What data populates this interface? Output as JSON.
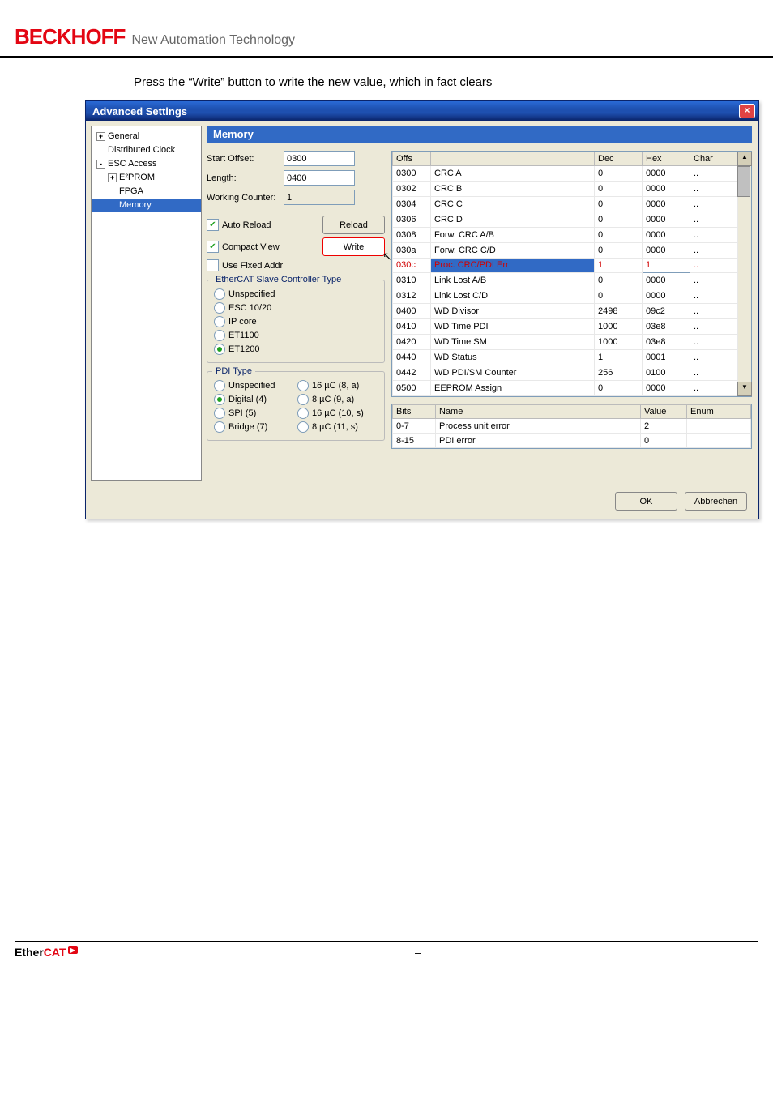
{
  "header": {
    "logo": "BECKHOFF",
    "sub": "New Automation Technology"
  },
  "body_text": "Press the “Write” button to write the new value, which in fact clears",
  "dialog": {
    "title": "Advanced Settings",
    "nav": {
      "general": "General",
      "dist_clock": "Distributed Clock",
      "esc_access": "ESC Access",
      "eeprom": "E²PROM",
      "fpga": "FPGA",
      "memory": "Memory"
    },
    "panel": {
      "title": "Memory",
      "start_offset_label": "Start Offset:",
      "start_offset": "0300",
      "length_label": "Length:",
      "length": "0400",
      "working_counter_label": "Working Counter:",
      "working_counter": "1",
      "auto_reload": "Auto Reload",
      "reload": "Reload",
      "compact_view": "Compact View",
      "write": "Write",
      "use_fixed_addr": "Use Fixed Addr",
      "ctrl_type_group": "EtherCAT Slave Controller Type",
      "ctrl_types": {
        "unspecified": "Unspecified",
        "esc1020": "ESC 10/20",
        "ipcore": "IP core",
        "et1100": "ET1100",
        "et1200": "ET1200"
      },
      "pdi_group": "PDI Type",
      "pdi_types": {
        "unspecified": "Unspecified",
        "digital": "Digital (4)",
        "spi": "SPI (5)",
        "bridge": "Bridge (7)",
        "uc16_8a": "16 µC (8, a)",
        "uc8_9a": "8 µC (9, a)",
        "uc16_10s": "16 µC (10, s)",
        "uc8_11s": "8 µC (11, s)"
      }
    },
    "reg_table": {
      "columns": {
        "offs": "Offs",
        "name": "",
        "dec": "Dec",
        "hex": "Hex",
        "char": "Char"
      },
      "rows": [
        {
          "offs": "0300",
          "name": "CRC A",
          "dec": "0",
          "hex": "0000",
          "char": "..",
          "red": false
        },
        {
          "offs": "0302",
          "name": "CRC B",
          "dec": "0",
          "hex": "0000",
          "char": "..",
          "red": false
        },
        {
          "offs": "0304",
          "name": "CRC C",
          "dec": "0",
          "hex": "0000",
          "char": "..",
          "red": false
        },
        {
          "offs": "0306",
          "name": "CRC D",
          "dec": "0",
          "hex": "0000",
          "char": "..",
          "red": false
        },
        {
          "offs": "0308",
          "name": "Forw. CRC A/B",
          "dec": "0",
          "hex": "0000",
          "char": "..",
          "red": false
        },
        {
          "offs": "030a",
          "name": "Forw. CRC C/D",
          "dec": "0",
          "hex": "0000",
          "char": "..",
          "red": false
        },
        {
          "offs": "030c",
          "name": "Proc. CRC/PDI Err",
          "dec": "1",
          "hex": "1",
          "char": "..",
          "red": true,
          "selected": true,
          "hex_edit": true
        },
        {
          "offs": "0310",
          "name": "Link Lost A/B",
          "dec": "0",
          "hex": "0000",
          "char": "..",
          "red": false
        },
        {
          "offs": "0312",
          "name": "Link Lost C/D",
          "dec": "0",
          "hex": "0000",
          "char": "..",
          "red": false
        },
        {
          "offs": "0400",
          "name": "WD Divisor",
          "dec": "2498",
          "hex": "09c2",
          "char": "..",
          "red": false
        },
        {
          "offs": "0410",
          "name": "WD Time PDI",
          "dec": "1000",
          "hex": "03e8",
          "char": "..",
          "red": false
        },
        {
          "offs": "0420",
          "name": "WD Time SM",
          "dec": "1000",
          "hex": "03e8",
          "char": "..",
          "red": false
        },
        {
          "offs": "0440",
          "name": "WD Status",
          "dec": "1",
          "hex": "0001",
          "char": "..",
          "red": false
        },
        {
          "offs": "0442",
          "name": "WD PDI/SM Counter",
          "dec": "256",
          "hex": "0100",
          "char": "..",
          "red": false
        },
        {
          "offs": "0500",
          "name": "EEPROM Assign",
          "dec": "0",
          "hex": "0000",
          "char": "..",
          "red": false
        }
      ]
    },
    "bit_table": {
      "columns": {
        "bits": "Bits",
        "name": "Name",
        "value": "Value",
        "enum": "Enum"
      },
      "rows": [
        {
          "bits": "0-7",
          "name": "Process unit error",
          "value": "2",
          "enum": ""
        },
        {
          "bits": "8-15",
          "name": "PDI error",
          "value": "0",
          "enum": ""
        }
      ]
    },
    "buttons": {
      "ok": "OK",
      "cancel": "Abbrechen"
    }
  },
  "footer": {
    "ether": "Ether",
    "cat": "CAT",
    "dash": "–"
  }
}
